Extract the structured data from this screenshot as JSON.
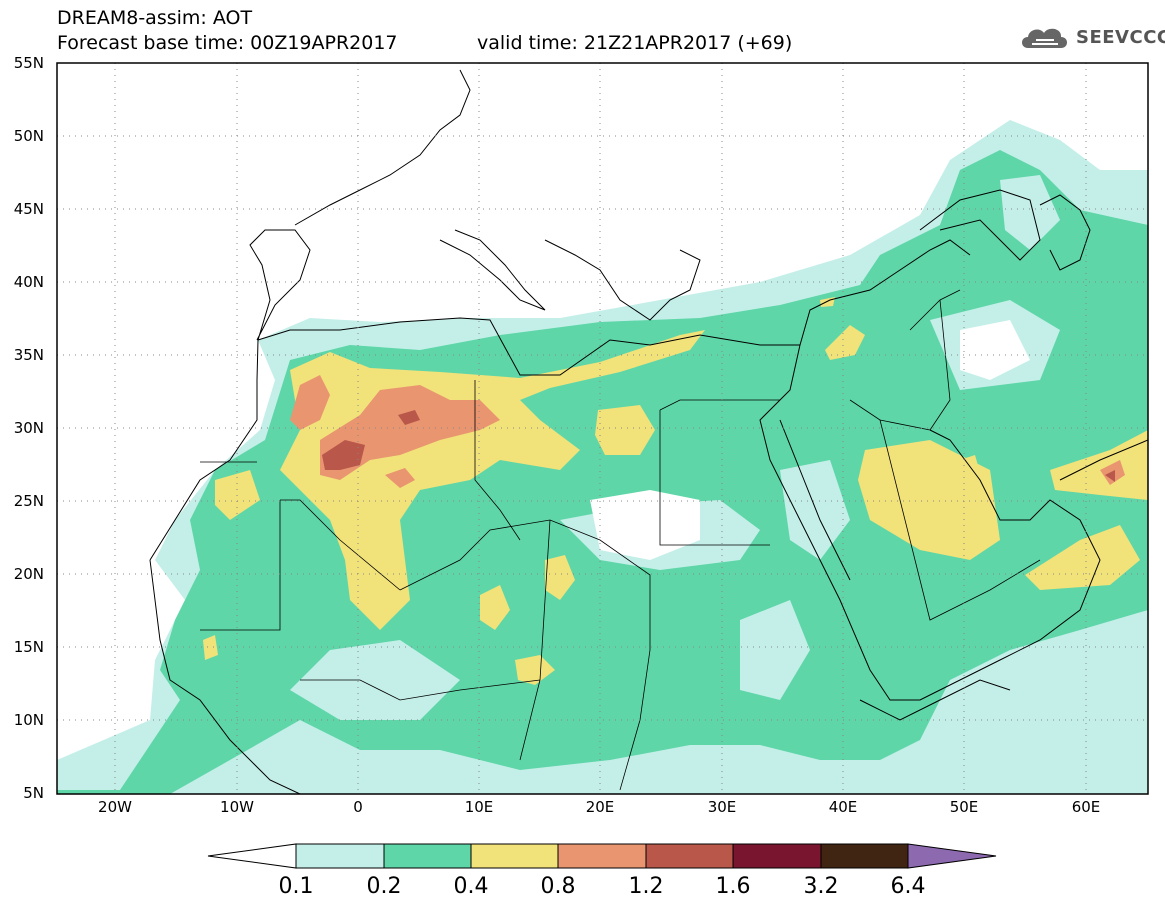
{
  "title": {
    "line1": "DREAM8-assim: AOT",
    "base_time": "Forecast base time: 00Z19APR2017",
    "valid_time": "valid time: 21Z21APR2017 (+69)"
  },
  "logo": {
    "text": "SEEVCCC",
    "icon": "cloud-icon"
  },
  "axes": {
    "lat_labels": [
      "55N",
      "50N",
      "45N",
      "40N",
      "35N",
      "30N",
      "25N",
      "20N",
      "15N",
      "10N",
      "5N"
    ],
    "lon_labels": [
      "20W",
      "10W",
      "0",
      "10E",
      "20E",
      "30E",
      "40E",
      "50E",
      "60E"
    ],
    "lat_range": [
      5,
      55
    ],
    "lon_range": [
      -25,
      65
    ],
    "grid": "dotted"
  },
  "colorbar": {
    "labels": [
      "0.1",
      "0.2",
      "0.4",
      "0.8",
      "1.2",
      "1.6",
      "3.2",
      "6.4"
    ],
    "colors": [
      "#ffffff",
      "#c4efe9",
      "#5ed6a8",
      "#f2e27a",
      "#e89570",
      "#b9574a",
      "#7a1530",
      "#3f2512",
      "#8d6ab0"
    ]
  },
  "colors": {
    "c01": "#c4efe9",
    "c02": "#5ed6a8",
    "c04": "#f2e27a",
    "c08": "#e89570",
    "c12": "#b9574a"
  }
}
